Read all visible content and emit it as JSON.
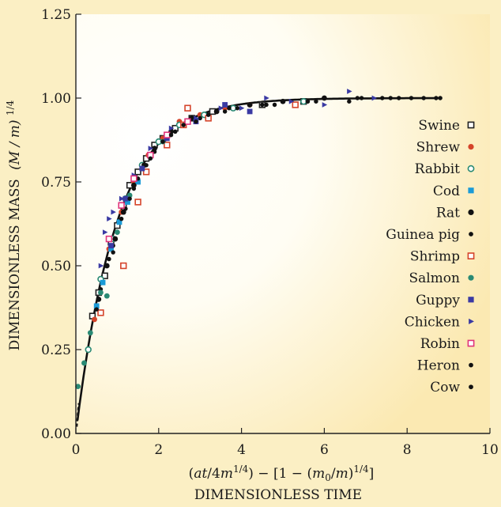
{
  "chart_data": {
    "type": "scatter",
    "ylabel_main": "DIMENSIONLESS MASS",
    "ylabel_formula": "(M / m)",
    "ylabel_exponent": "1/4",
    "xlabel_formula": "(at/4m1/4) − [1 − (m0/m)1/4]",
    "xlabel_main": "DIMENSIONLESS TIME",
    "xlim": [
      0,
      10
    ],
    "ylim": [
      0,
      1.25
    ],
    "xticks": [
      "0",
      "2",
      "4",
      "6",
      "8",
      "10"
    ],
    "yticks": [
      "0.00",
      "0.25",
      "0.50",
      "0.75",
      "1.00",
      "1.25"
    ],
    "grid": false,
    "legend_position": "right",
    "fit_curve": "1 - exp(-t)",
    "series": [
      {
        "name": "Swine",
        "marker": "open-square",
        "color": "#222222",
        "points": [
          [
            0.4,
            0.35
          ],
          [
            0.55,
            0.42
          ],
          [
            0.7,
            0.47
          ],
          [
            0.85,
            0.57
          ],
          [
            1.0,
            0.62
          ],
          [
            1.15,
            0.68
          ],
          [
            1.3,
            0.74
          ],
          [
            1.5,
            0.78
          ],
          [
            1.7,
            0.82
          ],
          [
            1.9,
            0.86
          ],
          [
            2.1,
            0.88
          ],
          [
            2.4,
            0.91
          ],
          [
            2.8,
            0.94
          ],
          [
            3.3,
            0.96
          ],
          [
            4.5,
            0.98
          ],
          [
            5.5,
            0.99
          ]
        ]
      },
      {
        "name": "Shrew",
        "marker": "dot",
        "color": "#d5442a",
        "points": [
          [
            0.45,
            0.34
          ],
          [
            0.8,
            0.55
          ],
          [
            1.1,
            0.66
          ],
          [
            1.4,
            0.75
          ],
          [
            1.75,
            0.83
          ],
          [
            2.1,
            0.88
          ],
          [
            2.5,
            0.93
          ],
          [
            3.0,
            0.95
          ],
          [
            3.6,
            0.97
          ],
          [
            4.2,
            0.98
          ]
        ]
      },
      {
        "name": "Rabbit",
        "marker": "open-circle",
        "color": "#2a8a74",
        "points": [
          [
            0.3,
            0.25
          ],
          [
            0.6,
            0.46
          ],
          [
            0.9,
            0.58
          ],
          [
            1.2,
            0.7
          ],
          [
            1.6,
            0.8
          ],
          [
            2.0,
            0.87
          ],
          [
            2.5,
            0.92
          ],
          [
            3.1,
            0.95
          ],
          [
            3.8,
            0.97
          ],
          [
            5.5,
            0.99
          ]
        ]
      },
      {
        "name": "Cod",
        "marker": "square",
        "color": "#1b9bd7",
        "points": [
          [
            0.5,
            0.38
          ],
          [
            0.65,
            0.45
          ],
          [
            0.85,
            0.55
          ],
          [
            1.05,
            0.63
          ],
          [
            1.25,
            0.69
          ],
          [
            1.5,
            0.75
          ]
        ]
      },
      {
        "name": "Rat",
        "marker": "dot",
        "color": "#111111",
        "points": [
          [
            0.55,
            0.4
          ],
          [
            0.75,
            0.5
          ],
          [
            0.95,
            0.58
          ],
          [
            1.15,
            0.66
          ],
          [
            1.4,
            0.74
          ],
          [
            1.65,
            0.8
          ],
          [
            1.9,
            0.85
          ],
          [
            2.3,
            0.9
          ],
          [
            2.8,
            0.94
          ],
          [
            3.4,
            0.96
          ],
          [
            4.2,
            0.98
          ],
          [
            5.0,
            0.99
          ],
          [
            6.0,
            1.0
          ]
        ]
      },
      {
        "name": "Guinea pig",
        "marker": "dot-small",
        "color": "#111111",
        "points": [
          [
            0.6,
            0.43
          ],
          [
            0.9,
            0.56
          ],
          [
            1.2,
            0.67
          ],
          [
            1.5,
            0.76
          ],
          [
            1.9,
            0.84
          ],
          [
            2.4,
            0.9
          ],
          [
            3.0,
            0.94
          ],
          [
            3.7,
            0.97
          ],
          [
            4.6,
            0.98
          ],
          [
            5.6,
            0.99
          ],
          [
            6.8,
            1.0
          ],
          [
            7.6,
            1.0
          ]
        ]
      },
      {
        "name": "Shrimp",
        "marker": "open-square",
        "color": "#d5442a",
        "points": [
          [
            0.6,
            0.36
          ],
          [
            1.15,
            0.5
          ],
          [
            1.5,
            0.69
          ],
          [
            1.7,
            0.78
          ],
          [
            2.2,
            0.86
          ],
          [
            2.6,
            0.92
          ],
          [
            2.7,
            0.97
          ],
          [
            3.2,
            0.94
          ],
          [
            5.3,
            0.98
          ]
        ]
      },
      {
        "name": "Salmon",
        "marker": "dot",
        "color": "#2a8a74",
        "points": [
          [
            0.05,
            0.14
          ],
          [
            0.2,
            0.21
          ],
          [
            0.35,
            0.3
          ],
          [
            0.6,
            0.42
          ],
          [
            0.75,
            0.41
          ],
          [
            1.0,
            0.6
          ],
          [
            1.3,
            0.71
          ],
          [
            1.6,
            0.79
          ],
          [
            2.1,
            0.87
          ],
          [
            2.7,
            0.93
          ]
        ]
      },
      {
        "name": "Guppy",
        "marker": "square",
        "color": "#3a3aa3",
        "points": [
          [
            0.85,
            0.56
          ],
          [
            1.2,
            0.7
          ],
          [
            1.6,
            0.79
          ],
          [
            2.2,
            0.88
          ],
          [
            2.9,
            0.93
          ],
          [
            3.6,
            0.98
          ],
          [
            4.2,
            0.96
          ]
        ]
      },
      {
        "name": "Chicken",
        "marker": "triangle",
        "color": "#3a3aa3",
        "points": [
          [
            0.6,
            0.5
          ],
          [
            0.7,
            0.6
          ],
          [
            0.8,
            0.64
          ],
          [
            0.9,
            0.66
          ],
          [
            1.1,
            0.7
          ],
          [
            1.4,
            0.77
          ],
          [
            1.8,
            0.85
          ],
          [
            2.3,
            0.91
          ],
          [
            2.9,
            0.94
          ],
          [
            3.5,
            0.97
          ],
          [
            4.0,
            0.97
          ],
          [
            4.6,
            1.0
          ],
          [
            5.2,
            0.99
          ],
          [
            6.0,
            0.98
          ],
          [
            6.6,
            1.02
          ],
          [
            7.2,
            1.0
          ]
        ]
      },
      {
        "name": "Robin",
        "marker": "open-square",
        "color": "#e0337a",
        "points": [
          [
            0.8,
            0.58
          ],
          [
            1.1,
            0.68
          ],
          [
            1.4,
            0.76
          ],
          [
            1.8,
            0.83
          ],
          [
            2.2,
            0.89
          ],
          [
            2.7,
            0.93
          ]
        ]
      },
      {
        "name": "Heron",
        "marker": "dot-small",
        "color": "#111111",
        "points": [
          [
            0.5,
            0.37
          ],
          [
            0.8,
            0.52
          ],
          [
            1.1,
            0.64
          ],
          [
            1.4,
            0.73
          ],
          [
            1.8,
            0.82
          ],
          [
            2.3,
            0.89
          ],
          [
            2.9,
            0.93
          ],
          [
            3.6,
            0.96
          ],
          [
            4.5,
            0.98
          ],
          [
            5.6,
            0.99
          ],
          [
            6.6,
            0.99
          ],
          [
            7.4,
            1.0
          ],
          [
            8.1,
            1.0
          ],
          [
            8.7,
            1.0
          ]
        ]
      },
      {
        "name": "Cow",
        "marker": "dot-small",
        "color": "#111111",
        "points": [
          [
            0.9,
            0.54
          ],
          [
            1.3,
            0.7
          ],
          [
            1.7,
            0.8
          ],
          [
            2.1,
            0.87
          ],
          [
            2.6,
            0.92
          ],
          [
            3.2,
            0.95
          ],
          [
            3.9,
            0.97
          ],
          [
            4.8,
            0.98
          ],
          [
            5.8,
            0.99
          ],
          [
            6.9,
            1.0
          ],
          [
            7.8,
            1.0
          ],
          [
            8.4,
            1.0
          ],
          [
            8.8,
            1.0
          ]
        ]
      }
    ]
  }
}
